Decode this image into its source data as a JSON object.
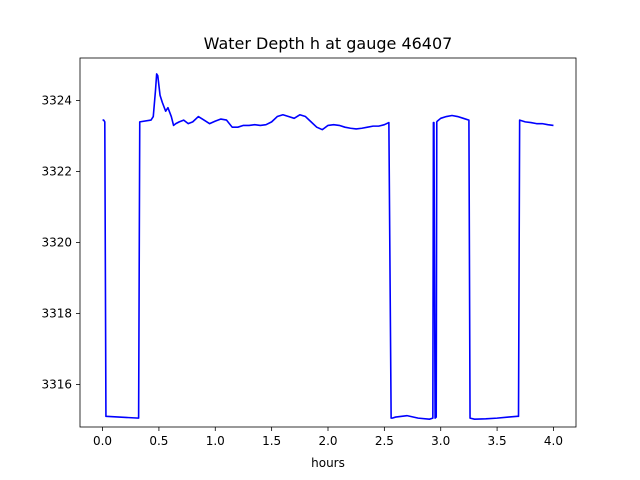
{
  "chart_data": {
    "type": "line",
    "title": "Water Depth h at gauge 46407",
    "xlabel": "hours",
    "ylabel": "",
    "xlim": [
      -0.2,
      4.2
    ],
    "ylim": [
      3314.8,
      3325.2
    ],
    "xticks": [
      0.0,
      0.5,
      1.0,
      1.5,
      2.0,
      2.5,
      3.0,
      3.5,
      4.0
    ],
    "xtick_labels": [
      "0.0",
      "0.5",
      "1.0",
      "1.5",
      "2.0",
      "2.5",
      "3.0",
      "3.5",
      "4.0"
    ],
    "yticks": [
      3316,
      3318,
      3320,
      3322,
      3324
    ],
    "ytick_labels": [
      "3316",
      "3318",
      "3320",
      "3322",
      "3324"
    ],
    "grid": false,
    "series": [
      {
        "color": "#0000ff",
        "x": [
          0.0,
          0.01,
          0.02,
          0.03,
          0.32,
          0.33,
          0.43,
          0.45,
          0.47,
          0.48,
          0.49,
          0.51,
          0.53,
          0.56,
          0.58,
          0.61,
          0.63,
          0.65,
          0.68,
          0.72,
          0.76,
          0.8,
          0.85,
          0.9,
          0.95,
          1.0,
          1.05,
          1.1,
          1.15,
          1.2,
          1.25,
          1.3,
          1.35,
          1.4,
          1.45,
          1.5,
          1.55,
          1.6,
          1.65,
          1.7,
          1.75,
          1.8,
          1.85,
          1.9,
          1.95,
          2.0,
          2.05,
          2.1,
          2.15,
          2.2,
          2.25,
          2.3,
          2.35,
          2.4,
          2.45,
          2.5,
          2.54,
          2.56,
          2.57,
          2.6,
          2.7,
          2.8,
          2.9,
          2.93,
          2.935,
          2.94,
          2.95,
          2.96,
          2.965,
          2.97,
          3.0,
          3.05,
          3.1,
          3.15,
          3.2,
          3.25,
          3.26,
          3.3,
          3.4,
          3.5,
          3.6,
          3.68,
          3.69,
          3.7,
          3.75,
          3.8,
          3.85,
          3.9,
          3.95,
          4.0
        ],
        "y": [
          3323.45,
          3323.45,
          3323.4,
          3315.1,
          3315.05,
          3323.4,
          3323.45,
          3323.55,
          3324.3,
          3324.75,
          3324.7,
          3324.15,
          3323.95,
          3323.7,
          3323.8,
          3323.55,
          3323.3,
          3323.35,
          3323.4,
          3323.45,
          3323.35,
          3323.4,
          3323.55,
          3323.45,
          3323.35,
          3323.42,
          3323.48,
          3323.45,
          3323.25,
          3323.25,
          3323.3,
          3323.3,
          3323.32,
          3323.3,
          3323.32,
          3323.4,
          3323.55,
          3323.6,
          3323.55,
          3323.5,
          3323.6,
          3323.55,
          3323.4,
          3323.25,
          3323.18,
          3323.3,
          3323.32,
          3323.3,
          3323.25,
          3323.22,
          3323.2,
          3323.22,
          3323.25,
          3323.28,
          3323.28,
          3323.32,
          3323.38,
          3315.05,
          3315.05,
          3315.08,
          3315.12,
          3315.05,
          3315.02,
          3315.05,
          3323.38,
          3323.38,
          3315.05,
          3315.08,
          3323.4,
          3323.42,
          3323.5,
          3323.55,
          3323.58,
          3323.55,
          3323.5,
          3323.45,
          3315.05,
          3315.02,
          3315.03,
          3315.05,
          3315.08,
          3315.1,
          3315.1,
          3323.45,
          3323.4,
          3323.38,
          3323.35,
          3323.35,
          3323.32,
          3323.3
        ]
      }
    ]
  }
}
